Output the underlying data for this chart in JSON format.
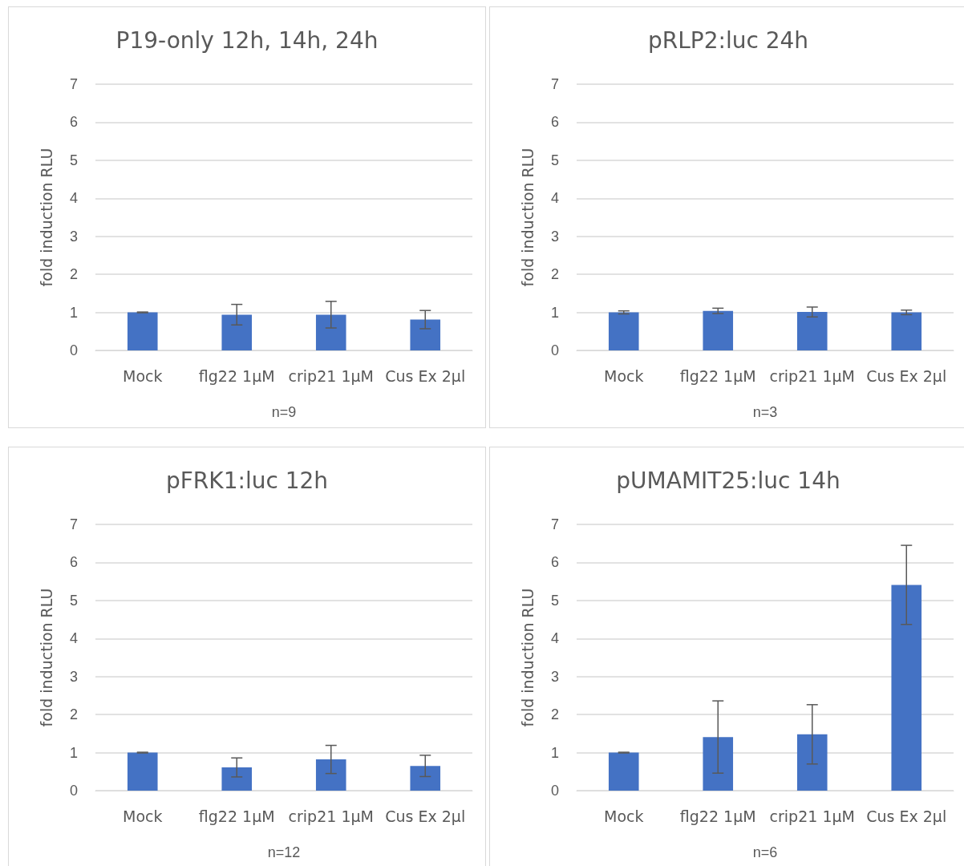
{
  "chart_data": [
    {
      "type": "bar",
      "title": "P19-only 12h, 14h, 24h",
      "xlabel": "n=9",
      "ylabel": "fold induction RLU",
      "categories": [
        "Mock",
        "flg22 1µM",
        "crip21 1µM",
        "Cus Ex 2µl"
      ],
      "values": [
        1.0,
        0.94,
        0.94,
        0.81
      ],
      "errors": [
        0.01,
        0.27,
        0.35,
        0.24
      ],
      "color": "#4472c4",
      "ylim": [
        0,
        7
      ],
      "yticks": [
        0,
        1,
        2,
        3,
        4,
        5,
        6,
        7
      ],
      "grid": "y"
    },
    {
      "type": "bar",
      "title": "pRLP2:luc 24h",
      "xlabel": "n=3",
      "ylabel": "fold induction RLU",
      "categories": [
        "Mock",
        "flg22 1µM",
        "crip21 1µM",
        "Cus Ex 2µl"
      ],
      "values": [
        1.0,
        1.04,
        1.01,
        1.0
      ],
      "errors": [
        0.04,
        0.07,
        0.13,
        0.06
      ],
      "color": "#4472c4",
      "ylim": [
        0,
        7
      ],
      "yticks": [
        0,
        1,
        2,
        3,
        4,
        5,
        6,
        7
      ],
      "grid": "y"
    },
    {
      "type": "bar",
      "title": "pFRK1:luc 12h",
      "xlabel": "n=12",
      "ylabel": "fold induction RLU",
      "categories": [
        "Mock",
        "flg22 1µM",
        "crip21 1µM",
        "Cus Ex 2µl"
      ],
      "values": [
        1.0,
        0.61,
        0.82,
        0.65
      ],
      "errors": [
        0.01,
        0.25,
        0.37,
        0.28
      ],
      "color": "#4472c4",
      "ylim": [
        0,
        7
      ],
      "yticks": [
        0,
        1,
        2,
        3,
        4,
        5,
        6,
        7
      ],
      "grid": "y"
    },
    {
      "type": "bar",
      "title": "pUMAMIT25:luc 14h",
      "xlabel": "n=6",
      "ylabel": "fold induction RLU",
      "categories": [
        "Mock",
        "flg22 1µM",
        "crip21 1µM",
        "Cus Ex 2µl"
      ],
      "values": [
        1.0,
        1.41,
        1.48,
        5.41
      ],
      "errors": [
        0.01,
        0.95,
        0.78,
        1.04
      ],
      "color": "#4472c4",
      "ylim": [
        0,
        7
      ],
      "yticks": [
        0,
        1,
        2,
        3,
        4,
        5,
        6,
        7
      ],
      "grid": "y"
    }
  ]
}
